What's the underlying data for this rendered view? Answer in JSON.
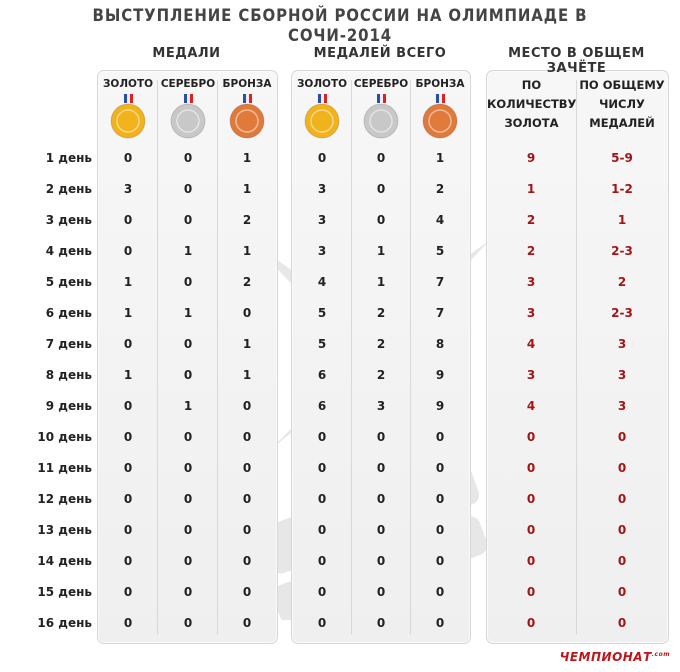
{
  "title": "ВЫСТУПЛЕНИЕ СБОРНОЙ РОССИИ НА ОЛИМПИАДЕ В СОЧИ-2014",
  "brand": {
    "name": "ЧЕМПИОНАТ",
    "suffix": ".com"
  },
  "colors": {
    "rank_text": "#a31515",
    "gold": "#f2b21c",
    "silver": "#c8c8c8",
    "bronze": "#e07a3a"
  },
  "chart_data": {
    "type": "table",
    "title": "ВЫСТУПЛЕНИЕ СБОРНОЙ РОССИИ НА ОЛИМПИАДЕ В СОЧИ-2014",
    "groups": [
      {
        "name": "МЕДАЛИ",
        "columns": [
          "ЗОЛОТО",
          "СЕРЕБРО",
          "БРОНЗА"
        ]
      },
      {
        "name": "МЕДАЛЕЙ ВСЕГО",
        "columns": [
          "ЗОЛОТО",
          "СЕРЕБРО",
          "БРОНЗА"
        ]
      },
      {
        "name": "МЕСТО В ОБЩЕМ ЗАЧЁТЕ",
        "columns": [
          "ПО КОЛИЧЕСТВУ ЗОЛОТА",
          "ПО ОБЩЕМУ ЧИСЛУ МЕДАЛЕЙ"
        ]
      }
    ],
    "place_headers": [
      [
        "ПО",
        "КОЛИЧЕСТВУ",
        "ЗОЛОТА"
      ],
      [
        "ПО ОБЩЕМУ",
        "ЧИСЛУ",
        "МЕДАЛЕЙ"
      ]
    ],
    "medal_icons": [
      "gold-medal",
      "silver-medal",
      "bronze-medal"
    ],
    "rows": [
      {
        "day": "1 день",
        "medals": [
          "0",
          "0",
          "1"
        ],
        "totals": [
          "0",
          "0",
          "1"
        ],
        "places": [
          "9",
          "5-9"
        ]
      },
      {
        "day": "2 день",
        "medals": [
          "3",
          "0",
          "1"
        ],
        "totals": [
          "3",
          "0",
          "2"
        ],
        "places": [
          "1",
          "1-2"
        ]
      },
      {
        "day": "3 день",
        "medals": [
          "0",
          "0",
          "2"
        ],
        "totals": [
          "3",
          "0",
          "4"
        ],
        "places": [
          "2",
          "1"
        ]
      },
      {
        "day": "4 день",
        "medals": [
          "0",
          "1",
          "1"
        ],
        "totals": [
          "3",
          "1",
          "5"
        ],
        "places": [
          "2",
          "2-3"
        ]
      },
      {
        "day": "5 день",
        "medals": [
          "1",
          "0",
          "2"
        ],
        "totals": [
          "4",
          "1",
          "7"
        ],
        "places": [
          "3",
          "2"
        ]
      },
      {
        "day": "6 день",
        "medals": [
          "1",
          "1",
          "0"
        ],
        "totals": [
          "5",
          "2",
          "7"
        ],
        "places": [
          "3",
          "2-3"
        ]
      },
      {
        "day": "7 день",
        "medals": [
          "0",
          "0",
          "1"
        ],
        "totals": [
          "5",
          "2",
          "8"
        ],
        "places": [
          "4",
          "3"
        ]
      },
      {
        "day": "8 день",
        "medals": [
          "1",
          "0",
          "1"
        ],
        "totals": [
          "6",
          "2",
          "9"
        ],
        "places": [
          "3",
          "3"
        ]
      },
      {
        "day": "9 день",
        "medals": [
          "0",
          "1",
          "0"
        ],
        "totals": [
          "6",
          "3",
          "9"
        ],
        "places": [
          "4",
          "3"
        ]
      },
      {
        "day": "10 день",
        "medals": [
          "0",
          "0",
          "0"
        ],
        "totals": [
          "0",
          "0",
          "0"
        ],
        "places": [
          "0",
          "0"
        ]
      },
      {
        "day": "11 день",
        "medals": [
          "0",
          "0",
          "0"
        ],
        "totals": [
          "0",
          "0",
          "0"
        ],
        "places": [
          "0",
          "0"
        ]
      },
      {
        "day": "12 день",
        "medals": [
          "0",
          "0",
          "0"
        ],
        "totals": [
          "0",
          "0",
          "0"
        ],
        "places": [
          "0",
          "0"
        ]
      },
      {
        "day": "13 день",
        "medals": [
          "0",
          "0",
          "0"
        ],
        "totals": [
          "0",
          "0",
          "0"
        ],
        "places": [
          "0",
          "0"
        ]
      },
      {
        "day": "14 день",
        "medals": [
          "0",
          "0",
          "0"
        ],
        "totals": [
          "0",
          "0",
          "0"
        ],
        "places": [
          "0",
          "0"
        ]
      },
      {
        "day": "15 день",
        "medals": [
          "0",
          "0",
          "0"
        ],
        "totals": [
          "0",
          "0",
          "0"
        ],
        "places": [
          "0",
          "0"
        ]
      },
      {
        "day": "16 день",
        "medals": [
          "0",
          "0",
          "0"
        ],
        "totals": [
          "0",
          "0",
          "0"
        ],
        "places": [
          "0",
          "0"
        ]
      }
    ]
  }
}
